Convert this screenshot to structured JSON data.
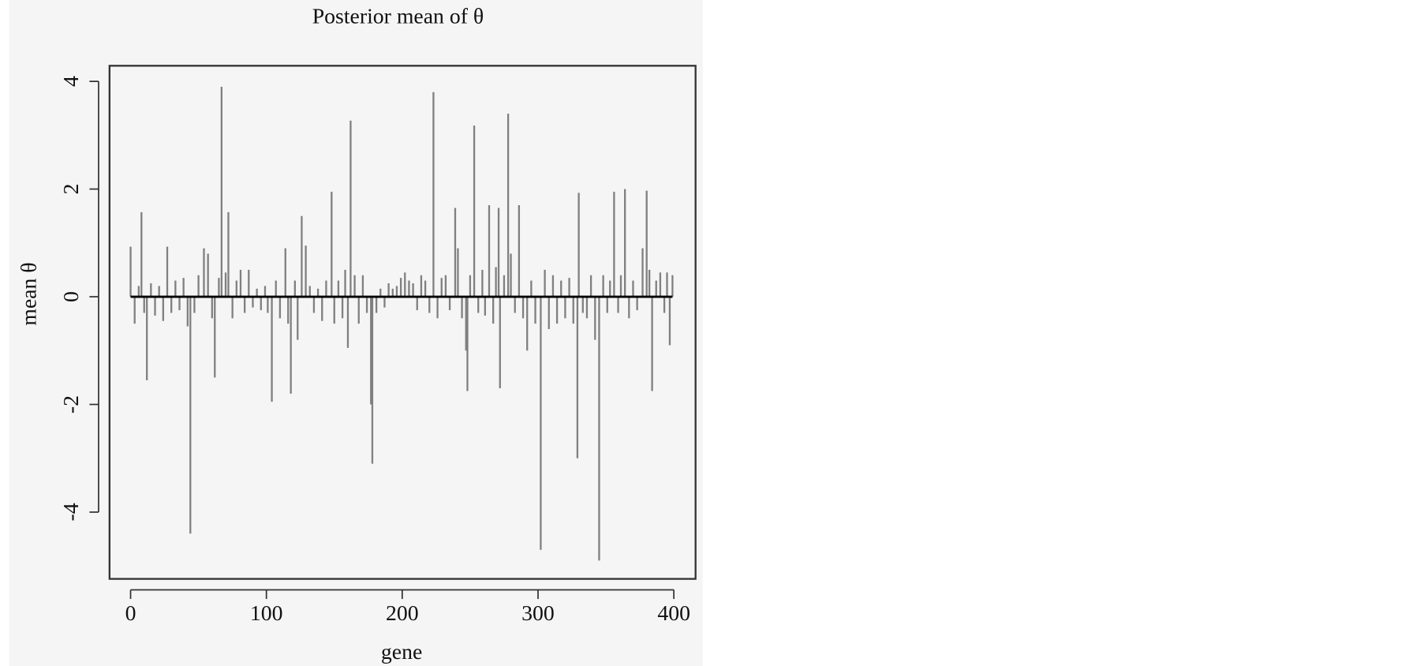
{
  "chart_data": {
    "type": "spike",
    "title": "Posterior mean of θ",
    "x_label": "gene",
    "y_label": "mean θ",
    "color": "#808080",
    "x": [
      0,
      3,
      6,
      8,
      10,
      12,
      15,
      18,
      21,
      24,
      27,
      30,
      33,
      36,
      39,
      42,
      44,
      47,
      50,
      54,
      57,
      60,
      62,
      65,
      67,
      70,
      72,
      75,
      78,
      81,
      84,
      87,
      90,
      93,
      96,
      99,
      101,
      104,
      107,
      110,
      114,
      116,
      118,
      121,
      123,
      126,
      129,
      132,
      135,
      138,
      141,
      144,
      148,
      150,
      153,
      156,
      158,
      160,
      162,
      165,
      168,
      171,
      174,
      177,
      178,
      181,
      184,
      187,
      190,
      193,
      196,
      199,
      202,
      205,
      208,
      211,
      214,
      217,
      220,
      223,
      226,
      229,
      232,
      235,
      239,
      241,
      244,
      247,
      248,
      250,
      253,
      256,
      259,
      261,
      264,
      267,
      269,
      271,
      272,
      275,
      278,
      280,
      283,
      286,
      289,
      292,
      295,
      298,
      302,
      305,
      308,
      311,
      314,
      317,
      320,
      323,
      326,
      329,
      330,
      333,
      336,
      339,
      342,
      345,
      348,
      351,
      353,
      356,
      359,
      361,
      364,
      367,
      370,
      373,
      377,
      380,
      382,
      384,
      387,
      390,
      393,
      395,
      397,
      399
    ],
    "values": [
      0.93,
      -0.5,
      0.2,
      1.57,
      -0.3,
      -1.55,
      0.25,
      -0.35,
      0.2,
      -0.45,
      0.93,
      -0.3,
      0.3,
      -0.25,
      0.35,
      -0.55,
      -4.4,
      -0.3,
      0.4,
      0.9,
      0.8,
      -0.4,
      -1.5,
      0.35,
      3.9,
      0.45,
      1.57,
      -0.4,
      0.3,
      0.5,
      -0.3,
      0.5,
      -0.2,
      0.15,
      -0.25,
      0.2,
      -0.3,
      -1.95,
      0.3,
      -0.4,
      0.9,
      -0.5,
      -1.8,
      0.3,
      -0.8,
      1.5,
      0.95,
      0.2,
      -0.3,
      0.15,
      -0.45,
      0.3,
      1.95,
      -0.5,
      0.3,
      -0.4,
      0.5,
      -0.95,
      3.27,
      0.4,
      -0.5,
      0.4,
      -0.3,
      -2.0,
      -3.1,
      -0.3,
      0.15,
      -0.2,
      0.25,
      0.15,
      0.2,
      0.35,
      0.45,
      0.3,
      0.25,
      -0.25,
      0.4,
      0.3,
      -0.3,
      3.8,
      -0.4,
      0.35,
      0.4,
      -0.25,
      1.65,
      0.9,
      -0.4,
      -1.0,
      -1.75,
      0.4,
      3.18,
      -0.3,
      0.5,
      -0.35,
      1.7,
      -0.5,
      0.55,
      1.65,
      -1.7,
      0.4,
      3.4,
      0.8,
      -0.3,
      1.7,
      -0.4,
      -1.0,
      0.3,
      -0.5,
      -4.7,
      0.5,
      -0.6,
      0.4,
      -0.5,
      0.3,
      -0.4,
      0.35,
      -0.5,
      -3.0,
      1.93,
      -0.3,
      -0.4,
      0.4,
      -0.8,
      -4.9,
      0.4,
      -0.3,
      0.3,
      1.95,
      -0.3,
      0.4,
      2.0,
      -0.4,
      0.3,
      -0.25,
      0.9,
      1.97,
      0.5,
      -1.75,
      0.3,
      0.45,
      -0.3,
      0.45,
      -0.9,
      0.4
    ],
    "xlim": [
      -15.5,
      416
    ],
    "ylim": [
      -5.24,
      4.29
    ],
    "xticks": [
      0,
      100,
      200,
      300,
      400
    ],
    "yticks": [
      -4,
      -2,
      0,
      2,
      4
    ]
  }
}
